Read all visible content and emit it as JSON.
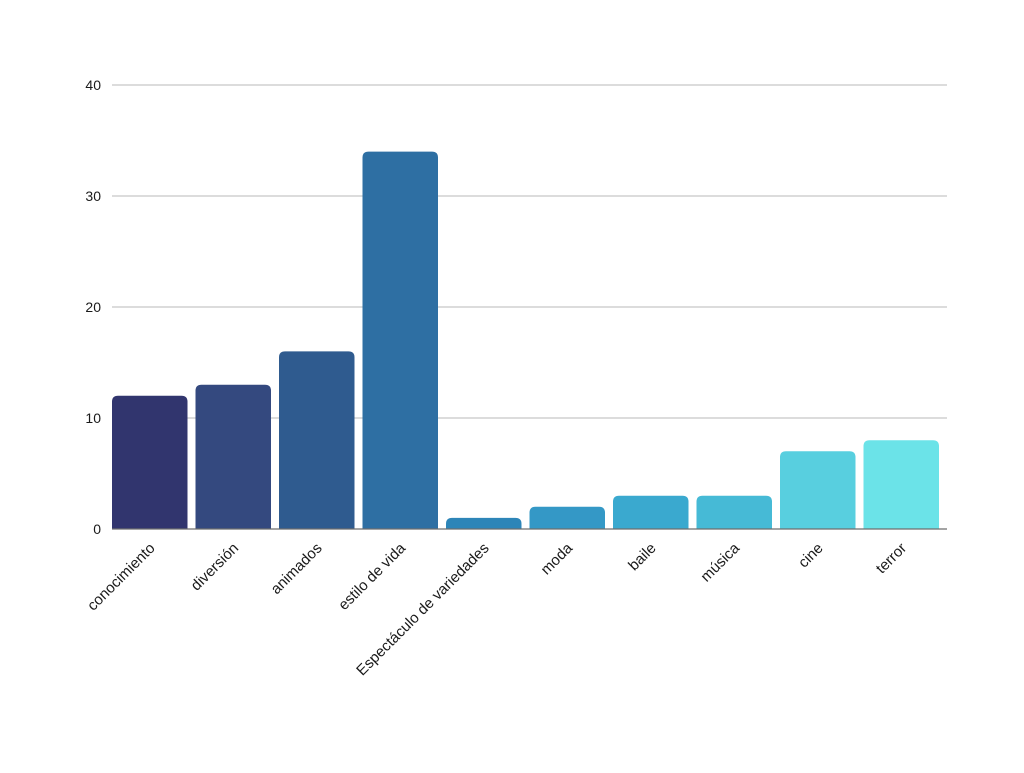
{
  "chart_data": {
    "type": "bar",
    "title": "",
    "xlabel": "",
    "ylabel": "",
    "categories": [
      "conocimiento",
      "diversión",
      "animados",
      "estilo de vida",
      "Espectáculo de variedades",
      "moda",
      "baile",
      "música",
      "cine",
      "terror"
    ],
    "values": [
      12,
      13,
      16,
      34,
      1,
      2,
      3,
      3,
      7,
      8
    ],
    "ylim": [
      0,
      40
    ],
    "yticks": [
      0,
      10,
      20,
      30,
      40
    ],
    "grid": true,
    "legend": "none",
    "colors": [
      "#31356e",
      "#34497f",
      "#2f5b8f",
      "#2e6fa3",
      "#2d85b8",
      "#3498c6",
      "#3aa9cf",
      "#46bad6",
      "#58cfdf",
      "#6be3e8"
    ]
  }
}
